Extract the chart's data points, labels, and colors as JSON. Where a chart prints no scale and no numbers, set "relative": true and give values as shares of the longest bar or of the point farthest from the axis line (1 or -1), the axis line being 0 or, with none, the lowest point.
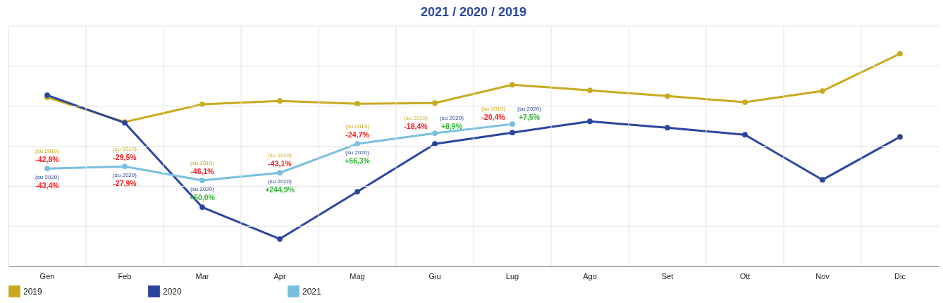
{
  "chart_data": {
    "type": "line",
    "title": "2021 / 2020 / 2019",
    "relative": true,
    "grid": true,
    "legend": "bottom left",
    "marker": "circle",
    "line_style": "solid",
    "categories": [
      "Gen",
      "Feb",
      "Mar",
      "Apr",
      "Mag",
      "Giu",
      "Lug",
      "Ago",
      "Set",
      "Ott",
      "Nov",
      "Dic"
    ],
    "series": [
      {
        "name": "2019",
        "color": "#c9aa1f",
        "values": [
          0.795,
          0.679,
          0.762,
          0.778,
          0.765,
          0.768,
          0.854,
          0.828,
          0.801,
          0.772,
          0.825,
          1
        ]
      },
      {
        "name": "2020",
        "color": "#2a45a0",
        "values": [
          0.805,
          0.675,
          0.278,
          0.129,
          0.351,
          0.576,
          0.629,
          0.682,
          0.652,
          0.619,
          0.407,
          0.609
        ]
      },
      {
        "name": "2021",
        "color": "#79bfe0",
        "values": [
          0.46,
          0.47,
          0.404,
          0.44,
          0.576,
          0.626,
          0.669,
          null,
          null,
          null,
          null,
          null
        ]
      }
    ],
    "annotations": [
      {
        "text": "(su 2019)",
        "x": "Gen",
        "y": 0.46
      },
      {
        "text": "-42,8%",
        "x": "Gen",
        "y": 0.46
      },
      {
        "text": "(su 2020)",
        "x": "Gen",
        "y": 0.46
      },
      {
        "text": "-43,4%",
        "x": "Gen",
        "y": 0.46
      },
      {
        "text": "(su 2019)",
        "x": "Feb",
        "y": 0.47
      },
      {
        "text": "-29,5%",
        "x": "Feb",
        "y": 0.47
      },
      {
        "text": "(su 2020)",
        "x": "Feb",
        "y": 0.47
      },
      {
        "text": "-27,9%",
        "x": "Feb",
        "y": 0.47
      },
      {
        "text": "(su 2019)",
        "x": "Mar",
        "y": 0.404
      },
      {
        "text": "-46,1%",
        "x": "Mar",
        "y": 0.404
      },
      {
        "text": "(su 2020)",
        "x": "Mar",
        "y": 0.404
      },
      {
        "text": "+50,0%",
        "x": "Mar",
        "y": 0.404
      },
      {
        "text": "(su 2019)",
        "x": "Apr",
        "y": 0.44
      },
      {
        "text": "-43,1%",
        "x": "Apr",
        "y": 0.44
      },
      {
        "text": "(su 2020)",
        "x": "Apr",
        "y": 0.44
      },
      {
        "text": "+244,9%",
        "x": "Apr",
        "y": 0.44
      },
      {
        "text": "(su 2019)",
        "x": "Mag",
        "y": 0.576
      },
      {
        "text": "-24,7%",
        "x": "Mag",
        "y": 0.576
      },
      {
        "text": "(su 2020)",
        "x": "Mag",
        "y": 0.576
      },
      {
        "text": "+66,3%",
        "x": "Mag",
        "y": 0.576
      },
      {
        "text": "(su 2019)",
        "x": "Giu",
        "y": 0.626
      },
      {
        "text": "-18,4%",
        "x": "Giu",
        "y": 0.626
      },
      {
        "text": "(su 2020)",
        "x": "Giu",
        "y": 0.626
      },
      {
        "text": "+8,9%",
        "x": "Giu",
        "y": 0.626
      },
      {
        "text": "(su 2019)",
        "x": "Lug",
        "y": 0.669
      },
      {
        "text": "-20,4%",
        "x": "Lug",
        "y": 0.669
      },
      {
        "text": "(su 2020)",
        "x": "Lug",
        "y": 0.669
      },
      {
        "text": "+7,5%",
        "x": "Lug",
        "y": 0.669
      }
    ]
  }
}
